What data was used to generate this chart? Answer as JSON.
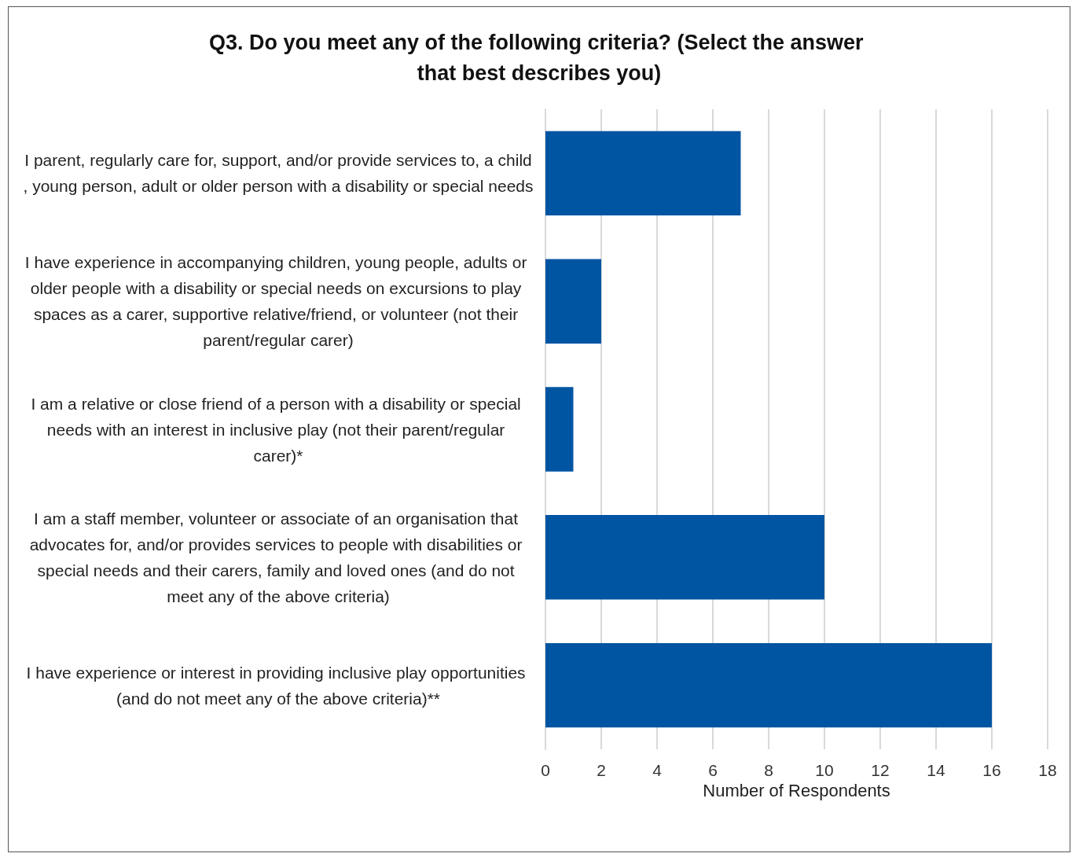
{
  "chart_data": {
    "type": "bar",
    "orientation": "horizontal",
    "title": "Q3. Do you meet any of the following criteria? (Select the answer that best describes you)",
    "categories": [
      "I parent, regularly care for, support, and/or provide services to, a child, young person, adult or older person with a disability or special needs",
      "I have experience in accompanying children, young people, adults or older people with a disability or special needs on excursions to play spaces as a carer, supportive relative/friend, or volunteer (not their parent/regular carer)",
      "I am a relative or close friend of a person with a disability or special needs with an interest in inclusive play (not their parent/regular carer)*",
      "I am a staff member, volunteer or associate of an organisation that advocates for, and/or provides services to people with disabilities or special needs and their carers, family and loved ones (and do not meet any of the above criteria)",
      "I have experience or interest in providing inclusive play opportunities (and do not meet any of the above criteria)**"
    ],
    "values": [
      7,
      2,
      1,
      10,
      16
    ],
    "color": "#0055a2",
    "xlabel": "Number of Respondents",
    "xlim": [
      0,
      18
    ],
    "xticks": [
      0,
      2,
      4,
      6,
      8,
      10,
      12,
      14,
      16,
      18
    ],
    "grid": "x"
  }
}
